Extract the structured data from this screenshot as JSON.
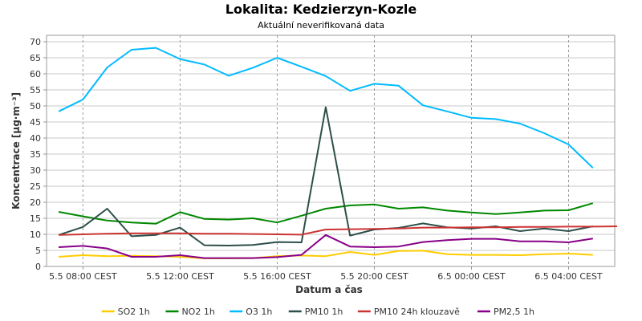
{
  "chart_data": {
    "type": "line",
    "title": "Lokalita: Kedzierzyn-Kozle",
    "subtitle": "Aktuální neverifikovaná data",
    "xlabel": "Datum a čas",
    "ylabel": "Koncentrace [µg·m⁻³]",
    "ylim": [
      0,
      72
    ],
    "y_ticks": [
      0,
      5,
      10,
      15,
      20,
      25,
      30,
      35,
      40,
      45,
      50,
      55,
      60,
      65,
      70
    ],
    "x_tick_labels": [
      "5.5 08:00 CEST",
      "5.5 12:00 CEST",
      "5.5 16:00 CEST",
      "5.5 20:00 CEST",
      "6.5 00:00 CEST",
      "6.5 04:00 CEST"
    ],
    "x_tick_hours": [
      8,
      12,
      16,
      20,
      24,
      28
    ],
    "x_range_hours": [
      6.5,
      29.9
    ],
    "grid": true,
    "legend_position": "bottom",
    "series": [
      {
        "name": "SO2 1h",
        "color": "#ffcc00",
        "x": [
          7,
          8,
          9,
          10,
          11,
          12,
          13,
          14,
          15,
          16,
          17,
          18,
          19,
          20,
          21,
          22,
          23,
          24,
          25,
          26,
          27,
          28,
          29
        ],
        "values": [
          3.0,
          3.5,
          3.2,
          3.3,
          3.2,
          3.0,
          2.5,
          2.5,
          2.6,
          3.2,
          3.4,
          3.2,
          4.5,
          3.6,
          4.8,
          4.9,
          3.8,
          3.6,
          3.6,
          3.5,
          3.8,
          4.0,
          3.6
        ]
      },
      {
        "name": "NO2 1h",
        "color": "#008800",
        "x": [
          7,
          8,
          9,
          10,
          11,
          12,
          13,
          14,
          15,
          16,
          17,
          18,
          19,
          20,
          21,
          22,
          23,
          24,
          25,
          26,
          27,
          28,
          29
        ],
        "values": [
          17.0,
          15.6,
          14.3,
          13.7,
          13.3,
          16.9,
          14.8,
          14.6,
          15.0,
          13.7,
          15.8,
          18.0,
          19.0,
          19.3,
          18.0,
          18.4,
          17.4,
          16.8,
          16.3,
          16.8,
          17.4,
          17.5,
          19.7
        ]
      },
      {
        "name": "O3 1h",
        "color": "#00bbff",
        "x": [
          7,
          8,
          9,
          10,
          11,
          12,
          13,
          14,
          15,
          16,
          17,
          18,
          19,
          20,
          21,
          22,
          23,
          24,
          25,
          26,
          27,
          28,
          29
        ],
        "values": [
          48.3,
          52.0,
          62.0,
          67.5,
          68.1,
          64.6,
          62.9,
          59.4,
          61.9,
          65.0,
          62.2,
          59.3,
          54.7,
          56.9,
          56.3,
          50.2,
          48.3,
          46.3,
          45.9,
          44.5,
          41.5,
          38.0,
          30.7
        ]
      },
      {
        "name": "PM10 1h",
        "color": "#2d4f4a",
        "x": [
          7,
          8,
          9,
          10,
          11,
          12,
          13,
          14,
          15,
          16,
          17,
          18,
          19,
          20,
          21,
          22,
          23,
          24,
          25,
          26,
          27,
          28,
          29
        ],
        "values": [
          9.8,
          12.3,
          18.0,
          9.4,
          9.8,
          12.1,
          6.6,
          6.5,
          6.7,
          7.6,
          7.5,
          49.6,
          9.6,
          11.5,
          12.0,
          13.4,
          12.2,
          11.8,
          12.5,
          11.0,
          11.8,
          11.0,
          12.5
        ]
      },
      {
        "name": "PM10 24h klouzavě",
        "color": "#cc3333",
        "x": [
          7,
          8,
          9,
          10,
          11,
          12,
          13,
          14,
          15,
          16,
          17,
          18,
          19,
          20,
          21,
          22,
          23,
          24,
          25,
          26,
          27,
          28,
          29,
          30
        ],
        "values": [
          9.8,
          10.0,
          10.2,
          10.3,
          10.3,
          10.3,
          10.2,
          10.2,
          10.1,
          10.0,
          9.9,
          11.5,
          11.6,
          11.7,
          11.8,
          12.1,
          12.1,
          12.2,
          12.2,
          12.3,
          12.3,
          12.4,
          12.4,
          12.5
        ]
      },
      {
        "name": "PM2,5 1h",
        "color": "#880088",
        "x": [
          7,
          8,
          9,
          10,
          11,
          12,
          13,
          14,
          15,
          16,
          17,
          18,
          19,
          20,
          21,
          22,
          23,
          24,
          25,
          26,
          27,
          28,
          29
        ],
        "values": [
          6.0,
          6.4,
          5.6,
          3.0,
          3.0,
          3.5,
          2.6,
          2.6,
          2.6,
          2.9,
          3.6,
          9.8,
          6.2,
          6.0,
          6.2,
          7.6,
          8.2,
          8.6,
          8.6,
          7.8,
          7.8,
          7.5,
          8.7
        ]
      }
    ]
  }
}
